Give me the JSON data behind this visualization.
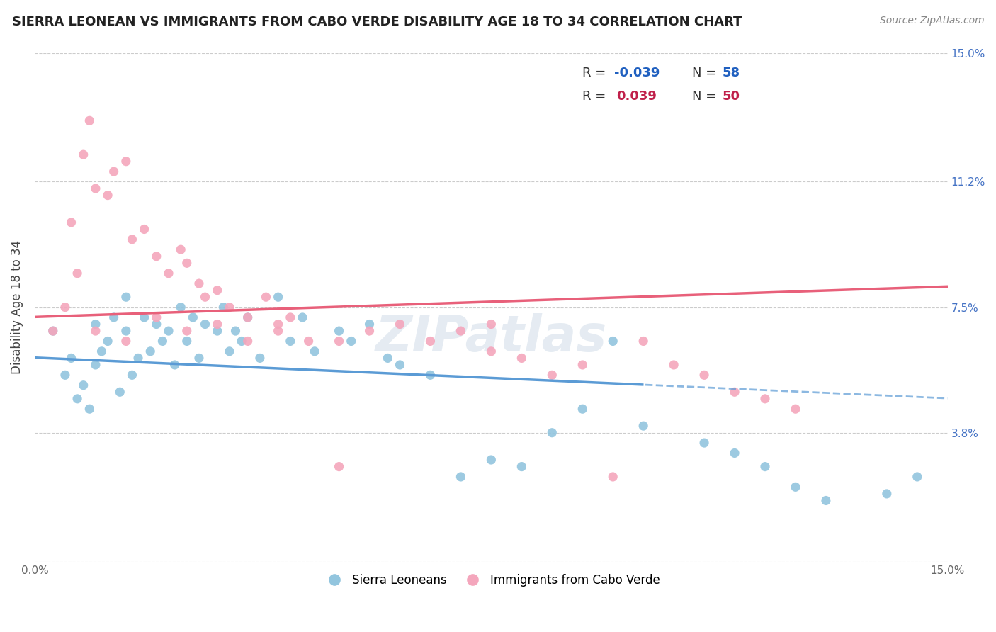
{
  "title": "SIERRA LEONEAN VS IMMIGRANTS FROM CABO VERDE DISABILITY AGE 18 TO 34 CORRELATION CHART",
  "source_text": "Source: ZipAtlas.com",
  "ylabel": "Disability Age 18 to 34",
  "xlim": [
    0.0,
    0.15
  ],
  "ylim": [
    0.0,
    0.15
  ],
  "ytick_values": [
    0.0,
    0.038,
    0.075,
    0.112,
    0.15
  ],
  "ytick_labels": [
    "",
    "3.8%",
    "7.5%",
    "11.2%",
    "15.0%"
  ],
  "blue_color": "#92c5de",
  "pink_color": "#f4a6bc",
  "blue_line_color": "#5b9bd5",
  "pink_line_color": "#e8607a",
  "blue_r": -0.039,
  "blue_n": 58,
  "pink_r": 0.039,
  "pink_n": 50,
  "blue_scatter_x": [
    0.003,
    0.005,
    0.006,
    0.007,
    0.008,
    0.009,
    0.01,
    0.01,
    0.011,
    0.012,
    0.013,
    0.014,
    0.015,
    0.015,
    0.016,
    0.017,
    0.018,
    0.019,
    0.02,
    0.021,
    0.022,
    0.023,
    0.024,
    0.025,
    0.026,
    0.027,
    0.028,
    0.03,
    0.031,
    0.032,
    0.033,
    0.034,
    0.035,
    0.037,
    0.04,
    0.042,
    0.044,
    0.046,
    0.05,
    0.052,
    0.055,
    0.058,
    0.06,
    0.065,
    0.07,
    0.075,
    0.08,
    0.085,
    0.09,
    0.095,
    0.1,
    0.11,
    0.115,
    0.12,
    0.125,
    0.13,
    0.14,
    0.145
  ],
  "blue_scatter_y": [
    0.068,
    0.055,
    0.06,
    0.048,
    0.052,
    0.045,
    0.058,
    0.07,
    0.062,
    0.065,
    0.072,
    0.05,
    0.068,
    0.078,
    0.055,
    0.06,
    0.072,
    0.062,
    0.07,
    0.065,
    0.068,
    0.058,
    0.075,
    0.065,
    0.072,
    0.06,
    0.07,
    0.068,
    0.075,
    0.062,
    0.068,
    0.065,
    0.072,
    0.06,
    0.078,
    0.065,
    0.072,
    0.062,
    0.068,
    0.065,
    0.07,
    0.06,
    0.058,
    0.055,
    0.025,
    0.03,
    0.028,
    0.038,
    0.045,
    0.065,
    0.04,
    0.035,
    0.032,
    0.028,
    0.022,
    0.018,
    0.02,
    0.025
  ],
  "pink_scatter_x": [
    0.003,
    0.005,
    0.006,
    0.007,
    0.008,
    0.009,
    0.01,
    0.012,
    0.013,
    0.015,
    0.016,
    0.018,
    0.02,
    0.022,
    0.024,
    0.025,
    0.027,
    0.028,
    0.03,
    0.032,
    0.035,
    0.038,
    0.04,
    0.042,
    0.05,
    0.055,
    0.06,
    0.065,
    0.07,
    0.075,
    0.08,
    0.085,
    0.09,
    0.095,
    0.1,
    0.105,
    0.11,
    0.115,
    0.12,
    0.125,
    0.01,
    0.015,
    0.02,
    0.025,
    0.03,
    0.035,
    0.04,
    0.045,
    0.05,
    0.075
  ],
  "pink_scatter_y": [
    0.068,
    0.075,
    0.1,
    0.085,
    0.12,
    0.13,
    0.11,
    0.108,
    0.115,
    0.118,
    0.095,
    0.098,
    0.09,
    0.085,
    0.092,
    0.088,
    0.082,
    0.078,
    0.08,
    0.075,
    0.072,
    0.078,
    0.07,
    0.072,
    0.065,
    0.068,
    0.07,
    0.065,
    0.068,
    0.062,
    0.06,
    0.055,
    0.058,
    0.025,
    0.065,
    0.058,
    0.055,
    0.05,
    0.048,
    0.045,
    0.068,
    0.065,
    0.072,
    0.068,
    0.07,
    0.065,
    0.068,
    0.065,
    0.028,
    0.07
  ],
  "watermark_text": "ZIPatlas",
  "legend1_label": "Sierra Leoneans",
  "legend2_label": "Immigrants from Cabo Verde"
}
